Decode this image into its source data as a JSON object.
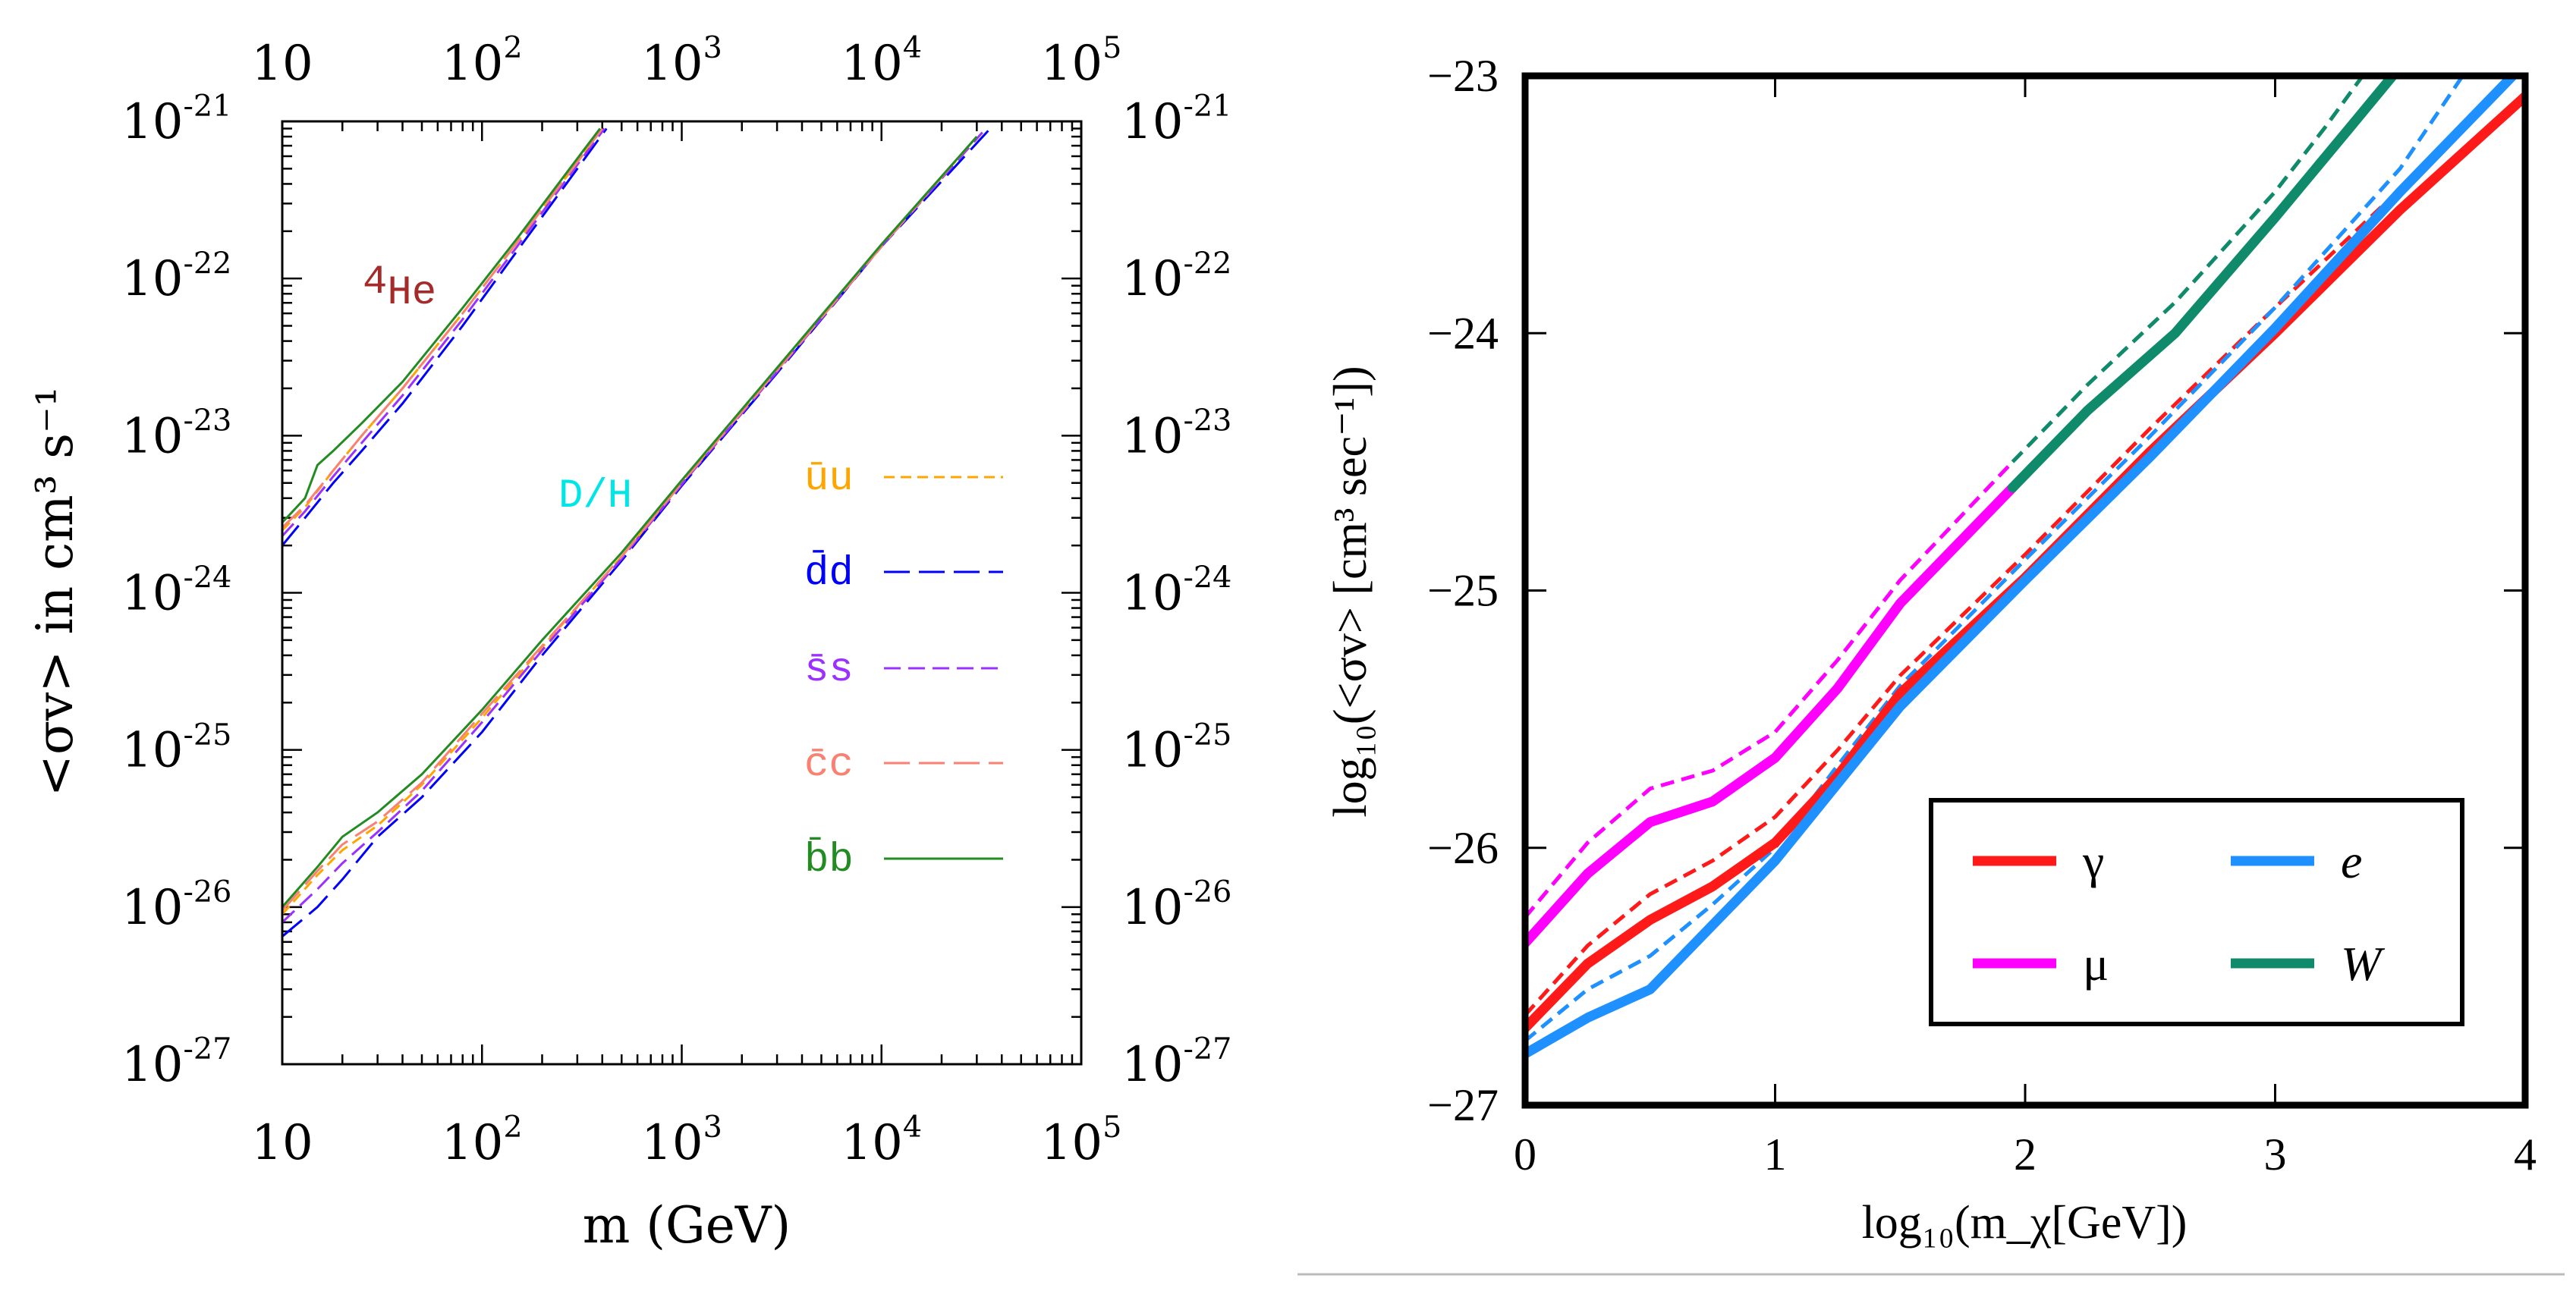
{
  "chart_data": [
    {
      "type": "line",
      "xscale": "log",
      "yscale": "log",
      "xlabel": "m (GeV)",
      "ylabel": "<σv> in cm³ s⁻¹",
      "xlim": [
        10,
        100000
      ],
      "ylim": [
        1e-27,
        1e-21
      ],
      "x_tick_labels": [
        {
          "base": "10",
          "exp": ""
        },
        {
          "base": "10",
          "exp": "2"
        },
        {
          "base": "10",
          "exp": "3"
        },
        {
          "base": "10",
          "exp": "4"
        },
        {
          "base": "10",
          "exp": "5"
        }
      ],
      "y_tick_labels": [
        {
          "base": "10",
          "exp": "-21"
        },
        {
          "base": "10",
          "exp": "-22"
        },
        {
          "base": "10",
          "exp": "-23"
        },
        {
          "base": "10",
          "exp": "-24"
        },
        {
          "base": "10",
          "exp": "-25"
        },
        {
          "base": "10",
          "exp": "-26"
        },
        {
          "base": "10",
          "exp": "-27"
        }
      ],
      "annotations": [
        {
          "text_sup": "4",
          "text": "He",
          "color": "#a52a2a"
        },
        {
          "text": "D/H",
          "color": "#00e5e5"
        }
      ],
      "legend_position": "right-middle",
      "series": [
        {
          "name": "ūu",
          "color": "#ffa500",
          "dash": "short-dash",
          "he_x": [
            10,
            13,
            18,
            25,
            40,
            80,
            150,
            300,
            400
          ],
          "he_y": [
            2.5e-24,
            3.5e-24,
            6e-24,
            1e-23,
            2e-23,
            6e-23,
            1.7e-22,
            5.5e-22,
            9e-22
          ],
          "dh_x": [
            10,
            15,
            20,
            30,
            50,
            100,
            200,
            500,
            1000,
            3000,
            10000,
            30000
          ],
          "dh_y": [
            9e-27,
            1.6e-26,
            2.3e-26,
            3.3e-26,
            6e-26,
            1.6e-25,
            4.5e-25,
            1.7e-24,
            5e-24,
            2.6e-23,
            1.6e-22,
            8e-22
          ]
        },
        {
          "name": "d̄d",
          "color": "#0000ff",
          "dash": "long-dash",
          "he_x": [
            10,
            13,
            18,
            25,
            40,
            80,
            150,
            300,
            420
          ],
          "he_y": [
            2e-24,
            3e-24,
            5e-24,
            8e-24,
            1.6e-23,
            5e-23,
            1.5e-22,
            5e-22,
            9e-22
          ],
          "dh_x": [
            10,
            15,
            20,
            30,
            50,
            100,
            200,
            500,
            1000,
            3000,
            10000,
            35000
          ],
          "dh_y": [
            6.5e-27,
            1e-26,
            1.5e-26,
            2.8e-26,
            5e-26,
            1.3e-25,
            4e-25,
            1.6e-24,
            4.8e-24,
            2.5e-23,
            1.6e-22,
            9e-22
          ]
        },
        {
          "name": "s̄s",
          "color": "#9b30ff",
          "dash": "medium-dash",
          "he_x": [
            10,
            13,
            18,
            25,
            40,
            80,
            150,
            300,
            410
          ],
          "he_y": [
            2.3e-24,
            3.3e-24,
            5.5e-24,
            9e-24,
            1.8e-23,
            5.5e-23,
            1.6e-22,
            5.3e-22,
            9e-22
          ],
          "dh_x": [
            10,
            15,
            20,
            30,
            50,
            100,
            200,
            500,
            1000,
            3000,
            10000,
            32000
          ],
          "dh_y": [
            8e-27,
            1.3e-26,
            1.9e-26,
            3e-26,
            5.5e-26,
            1.5e-25,
            4.3e-25,
            1.65e-24,
            4.9e-24,
            2.55e-23,
            1.6e-22,
            8.5e-22
          ]
        },
        {
          "name": "c̄c",
          "color": "#fa8072",
          "dash": "long-dash",
          "he_x": [
            10,
            13,
            18,
            25,
            40,
            80,
            150,
            300,
            400
          ],
          "he_y": [
            2.6e-24,
            3.6e-24,
            6e-24,
            1e-23,
            2e-23,
            6e-23,
            1.7e-22,
            5.5e-22,
            9e-22
          ],
          "dh_x": [
            10,
            15,
            20,
            30,
            50,
            100,
            200,
            500,
            1000,
            3000,
            10000,
            30000
          ],
          "dh_y": [
            9.5e-27,
            1.7e-26,
            2.5e-26,
            3.5e-26,
            6.2e-26,
            1.7e-25,
            4.6e-25,
            1.7e-24,
            5e-24,
            2.6e-23,
            1.6e-22,
            8e-22
          ]
        },
        {
          "name": "b̄b",
          "color": "#228b22",
          "dash": "solid",
          "he_x": [
            10,
            13,
            15,
            18,
            25,
            40,
            80,
            150,
            300,
            390
          ],
          "he_y": [
            2.8e-24,
            4e-24,
            6.5e-24,
            8e-24,
            1.2e-23,
            2.2e-23,
            6.5e-23,
            1.8e-22,
            5.8e-22,
            9e-22
          ],
          "dh_x": [
            10,
            15,
            20,
            30,
            50,
            100,
            200,
            500,
            1000,
            3000,
            10000,
            30000
          ],
          "dh_y": [
            1e-26,
            1.8e-26,
            2.8e-26,
            4e-26,
            7e-26,
            1.8e-25,
            5e-25,
            1.8e-24,
            5.2e-24,
            2.7e-23,
            1.65e-22,
            8e-22
          ]
        }
      ]
    },
    {
      "type": "line",
      "xlabel": "log₁₀(m_χ[GeV])",
      "ylabel": "log₁₀(<σv> [cm³ sec⁻¹])",
      "xlim": [
        0,
        4
      ],
      "ylim": [
        -27,
        -23
      ],
      "x_ticks": [
        "0",
        "1",
        "2",
        "3",
        "4"
      ],
      "y_ticks": [
        "−23",
        "−24",
        "−25",
        "−26",
        "−27"
      ],
      "legend_position": "bottom-right",
      "series": [
        {
          "name": "γ",
          "color": "#ff1a1a",
          "style": "solid",
          "x": [
            0,
            0.25,
            0.5,
            0.75,
            1.0,
            1.25,
            1.5,
            2.0,
            2.5,
            3.0,
            3.5,
            4.0
          ],
          "y": [
            -26.7,
            -26.45,
            -26.28,
            -26.15,
            -25.98,
            -25.72,
            -25.4,
            -24.95,
            -24.46,
            -24.0,
            -23.52,
            -23.08
          ]
        },
        {
          "name": "γ",
          "color": "#ff1a1a",
          "style": "dashed",
          "x": [
            0,
            0.25,
            0.5,
            0.75,
            1.0,
            1.25,
            1.5,
            2.0,
            2.5,
            3.0,
            3.5,
            3.8
          ],
          "y": [
            -26.65,
            -26.38,
            -26.18,
            -26.05,
            -25.88,
            -25.62,
            -25.33,
            -24.86,
            -24.37,
            -23.9,
            -23.44,
            -23.15
          ]
        },
        {
          "name": "e",
          "color": "#1e90ff",
          "style": "solid",
          "x": [
            0,
            0.25,
            0.5,
            0.75,
            1.0,
            1.25,
            1.5,
            2.0,
            2.5,
            3.0,
            3.5,
            3.95
          ],
          "y": [
            -26.8,
            -26.66,
            -26.55,
            -26.3,
            -26.05,
            -25.75,
            -25.45,
            -24.96,
            -24.48,
            -23.98,
            -23.45,
            -23.0
          ]
        },
        {
          "name": "e",
          "color": "#1e90ff",
          "style": "dashed",
          "x": [
            0,
            0.25,
            0.5,
            0.75,
            1.0,
            1.25,
            1.5,
            2.0,
            2.5,
            3.0,
            3.5,
            3.75
          ],
          "y": [
            -26.75,
            -26.55,
            -26.42,
            -26.22,
            -26.0,
            -25.68,
            -25.37,
            -24.88,
            -24.4,
            -23.9,
            -23.36,
            -23.0
          ]
        },
        {
          "name": "μ",
          "color": "#ff00ff",
          "style": "solid",
          "x": [
            0,
            0.25,
            0.5,
            0.75,
            1.0,
            1.25,
            1.5,
            1.95
          ],
          "y": [
            -26.37,
            -26.1,
            -25.9,
            -25.82,
            -25.65,
            -25.38,
            -25.05,
            -24.6
          ]
        },
        {
          "name": "μ",
          "color": "#ff00ff",
          "style": "dashed",
          "x": [
            0,
            0.25,
            0.5,
            0.75,
            1.0,
            1.25,
            1.5,
            1.95
          ],
          "y": [
            -26.27,
            -25.98,
            -25.77,
            -25.7,
            -25.55,
            -25.27,
            -24.96,
            -24.5
          ]
        },
        {
          "name": "W",
          "color": "#0f8a6a",
          "style": "solid",
          "x": [
            1.95,
            2.25,
            2.6,
            3.0,
            3.3,
            3.47
          ],
          "y": [
            -24.6,
            -24.3,
            -24.0,
            -23.55,
            -23.2,
            -23.0
          ]
        },
        {
          "name": "W",
          "color": "#0f8a6a",
          "style": "dashed",
          "x": [
            1.95,
            2.25,
            2.6,
            3.0,
            3.2,
            3.35
          ],
          "y": [
            -24.5,
            -24.2,
            -23.88,
            -23.45,
            -23.2,
            -23.0
          ]
        }
      ],
      "legend": [
        {
          "label": "γ",
          "color": "#ff1a1a"
        },
        {
          "label": "e",
          "color": "#1e90ff"
        },
        {
          "label": "μ",
          "color": "#ff00ff"
        },
        {
          "label": "W",
          "color": "#0f8a6a"
        }
      ]
    }
  ]
}
